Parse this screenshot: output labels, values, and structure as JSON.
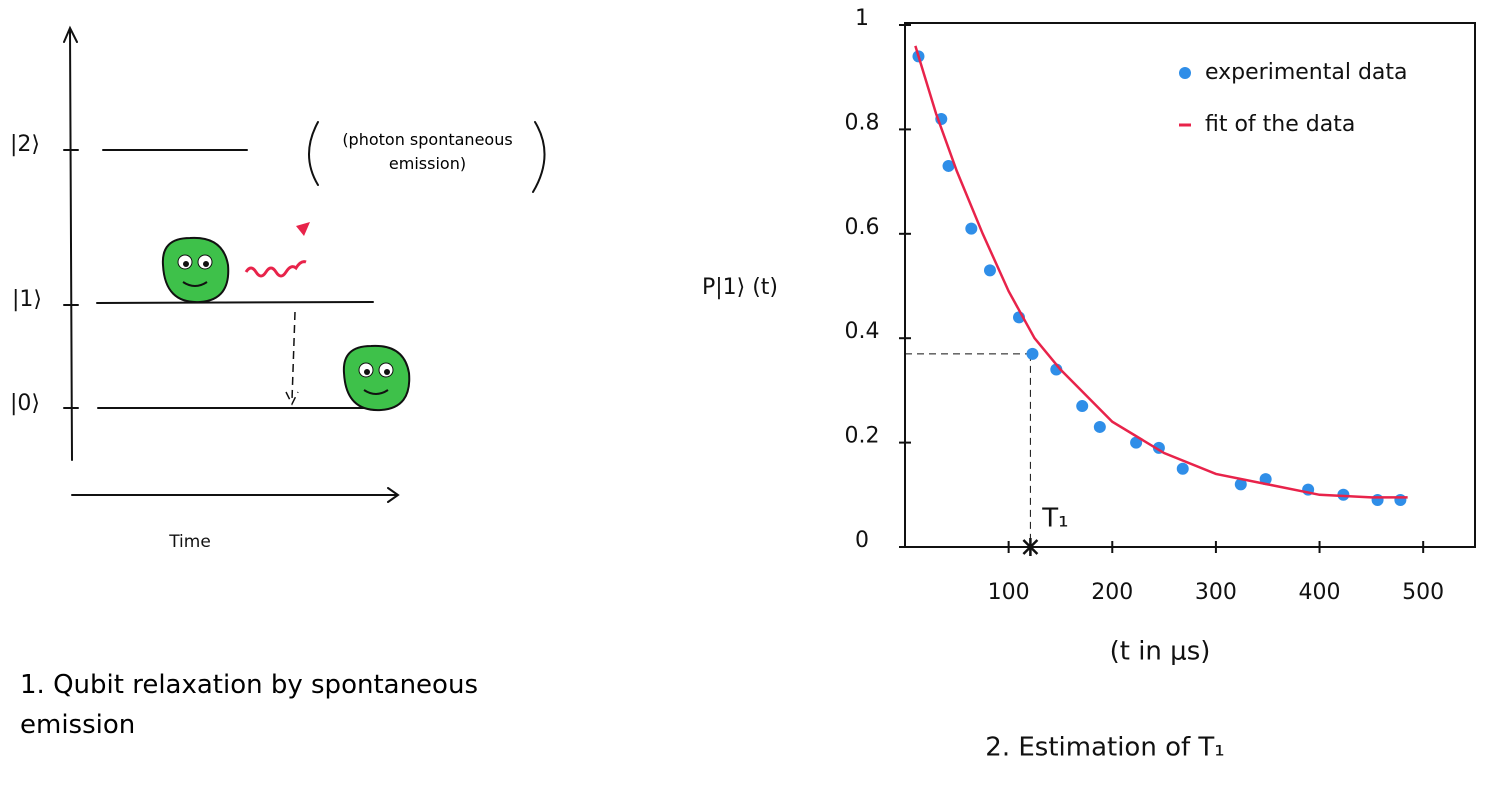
{
  "diagram": {
    "levels": [
      "|2⟩",
      "|1⟩",
      "|0⟩"
    ],
    "note": "(photon spontaneous emission)",
    "time_label": "Time",
    "caption": "1. Qubit relaxation by spontaneous emission"
  },
  "chart_data": {
    "type": "scatter",
    "caption": "2. Estimation of T₁",
    "x_label": "(t in μs)",
    "y_label": "P|1⟩ (t)",
    "xlim": [
      0,
      550
    ],
    "ylim": [
      0,
      1
    ],
    "xticks": [
      100,
      200,
      300,
      400,
      500
    ],
    "yticks": [
      0,
      0.2,
      0.4,
      0.6,
      0.8,
      1
    ],
    "legend": "top-right",
    "series": [
      {
        "name": "experimental data",
        "color": "#2f8ee8",
        "kind": "points",
        "x": [
          13,
          35,
          42,
          64,
          82,
          110,
          123,
          146,
          171,
          188,
          223,
          245,
          268,
          324,
          348,
          389,
          423,
          456,
          478
        ],
        "values": [
          0.94,
          0.82,
          0.73,
          0.61,
          0.53,
          0.44,
          0.37,
          0.34,
          0.27,
          0.23,
          0.2,
          0.19,
          0.15,
          0.12,
          0.13,
          0.11,
          0.1,
          0.09,
          0.09
        ]
      },
      {
        "name": "fit of the data",
        "color": "#e8234a",
        "kind": "line",
        "x": [
          10,
          30,
          50,
          75,
          100,
          125,
          150,
          175,
          200,
          250,
          300,
          350,
          400,
          450,
          485
        ],
        "values": [
          0.96,
          0.83,
          0.72,
          0.6,
          0.49,
          0.4,
          0.34,
          0.29,
          0.24,
          0.18,
          0.14,
          0.12,
          0.1,
          0.095,
          0.095
        ]
      }
    ],
    "annotations": [
      {
        "text": "T₁",
        "x": 121,
        "y": 0.37
      }
    ]
  }
}
